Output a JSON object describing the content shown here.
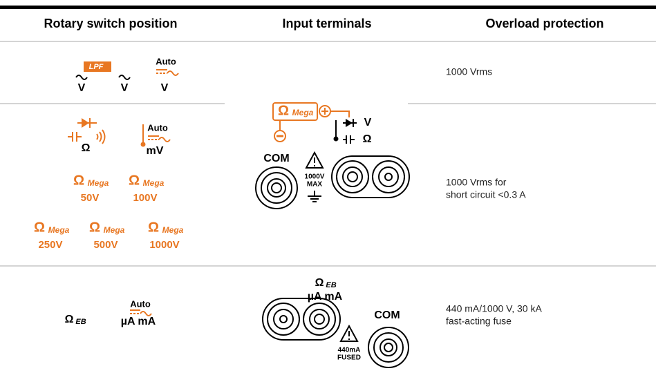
{
  "table": {
    "headers": [
      "Rotary switch position",
      "Input terminals",
      "Overload protection"
    ],
    "rows": [
      {
        "switch": {
          "ac_v": "V",
          "lpf": "LPF",
          "lpf_v": "V",
          "auto": "Auto",
          "auto_v": "V"
        },
        "protection": [
          "1000 Vrms"
        ]
      },
      {
        "switch": {
          "omega": "Ω",
          "auto": "Auto",
          "mv": "mV",
          "mega": [
            {
              "symbol": "Ω",
              "sub": "Mega",
              "voltage": "50V"
            },
            {
              "symbol": "Ω",
              "sub": "Mega",
              "voltage": "100V"
            },
            {
              "symbol": "Ω",
              "sub": "Mega",
              "voltage": "250V"
            },
            {
              "symbol": "Ω",
              "sub": "Mega",
              "voltage": "500V"
            },
            {
              "symbol": "Ω",
              "sub": "Mega",
              "voltage": "1000V"
            }
          ]
        },
        "protection": [
          "1000 Vrms for",
          "short circuit <0.3 A"
        ]
      },
      {
        "switch": {
          "omega": "Ω",
          "sub": "EB",
          "auto": "Auto",
          "current": "µA mA"
        },
        "protection": [
          "440 mA/1000 V, 30 kA",
          "fast-acting fuse"
        ]
      }
    ],
    "terminals": [
      {
        "mega_symbol": "Ω",
        "mega_sub": "Mega",
        "v": "V",
        "omega": "Ω",
        "com": "COM",
        "rating": [
          "1000V",
          "MAX"
        ]
      },
      {
        "omega": "Ω",
        "sub": "EB",
        "current": "µA mA",
        "com": "COM",
        "rating": [
          "440mA",
          "FUSED"
        ]
      }
    ]
  }
}
